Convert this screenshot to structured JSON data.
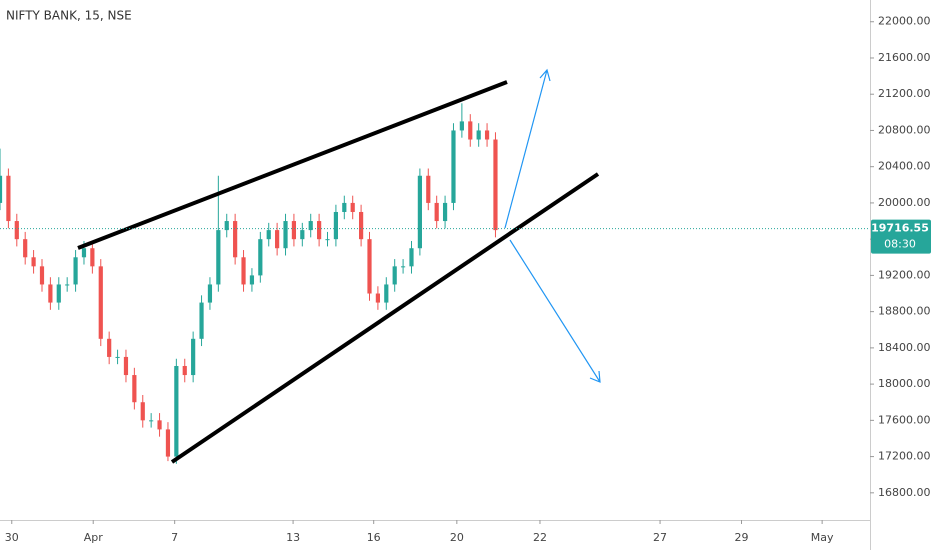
{
  "chart_data": {
    "type": "candlestick",
    "title": "NIFTY BANK, 15, NSE",
    "x": [
      0,
      1,
      2,
      3,
      4,
      5,
      6,
      7,
      8,
      9,
      10,
      11,
      12,
      13,
      14,
      15,
      16,
      17,
      18,
      19,
      20,
      21,
      22,
      23,
      24,
      25,
      26,
      27,
      28,
      29,
      30,
      31,
      32,
      33,
      34,
      35,
      36,
      37,
      38,
      39,
      40,
      41,
      42,
      43,
      44,
      45,
      46,
      47,
      48,
      49,
      50,
      51,
      52,
      53,
      54,
      55,
      56,
      57,
      58,
      59
    ],
    "open": [
      20000,
      20300,
      19800,
      19600,
      19400,
      19300,
      19100,
      18900,
      19100,
      19100,
      19400,
      19500,
      19300,
      18500,
      18300,
      18300,
      18100,
      17800,
      17600,
      17600,
      17500,
      17200,
      18200,
      18100,
      18500,
      18900,
      19100,
      19700,
      19800,
      19400,
      19100,
      19200,
      19600,
      19700,
      19500,
      19800,
      19600,
      19700,
      19800,
      19600,
      19600,
      19900,
      20000,
      19900,
      19600,
      19000,
      18900,
      19100,
      19300,
      19300,
      19500,
      20300,
      20000,
      19800,
      20000,
      20800,
      20900,
      20700,
      20800,
      20700
    ],
    "high": [
      20600,
      20380,
      19880,
      19680,
      19480,
      19380,
      19180,
      19180,
      19180,
      19480,
      19580,
      19580,
      19380,
      18580,
      18380,
      18380,
      18180,
      17880,
      17680,
      17680,
      17580,
      18280,
      18280,
      18580,
      18980,
      19180,
      20300,
      19880,
      19880,
      19480,
      19280,
      19680,
      19780,
      19780,
      19880,
      19880,
      19780,
      19880,
      19880,
      19680,
      19980,
      20080,
      20080,
      19980,
      19680,
      19080,
      19180,
      19380,
      19380,
      19580,
      20380,
      20380,
      20080,
      20080,
      20880,
      21100,
      20980,
      20880,
      20880,
      20780
    ],
    "low": [
      19920,
      19720,
      19520,
      19320,
      19220,
      19020,
      18820,
      18820,
      19020,
      19020,
      19320,
      19220,
      18420,
      18220,
      18220,
      18020,
      17720,
      17520,
      17520,
      17420,
      17150,
      17120,
      18020,
      18020,
      18420,
      18820,
      19020,
      19620,
      19320,
      19020,
      19020,
      19120,
      19520,
      19420,
      19420,
      19520,
      19520,
      19620,
      19520,
      19520,
      19520,
      19820,
      19820,
      19520,
      18920,
      18820,
      18820,
      19020,
      19220,
      19220,
      19420,
      19920,
      19720,
      19720,
      19920,
      20720,
      20620,
      20620,
      20620,
      19620
    ],
    "close": [
      20300,
      19800,
      19600,
      19400,
      19300,
      19100,
      18900,
      19100,
      19100,
      19400,
      19500,
      19300,
      18500,
      18300,
      18300,
      18100,
      17800,
      17600,
      17600,
      17500,
      17200,
      18200,
      18100,
      18500,
      18900,
      19100,
      19700,
      19800,
      19400,
      19100,
      19200,
      19600,
      19700,
      19500,
      19800,
      19600,
      19700,
      19800,
      19600,
      19600,
      19900,
      20000,
      19900,
      19600,
      19000,
      18900,
      19100,
      19300,
      19300,
      19500,
      20300,
      20000,
      19800,
      20000,
      20800,
      20900,
      20700,
      20800,
      20700,
      19700
    ],
    "up_color": "#26a69a",
    "down_color": "#ef5350",
    "xlim": [
      0,
      103.6
    ],
    "xticks": [
      {
        "value": 1.4,
        "label": "30"
      },
      {
        "value": 11.1,
        "label": "Apr"
      },
      {
        "value": 20.8,
        "label": "7"
      },
      {
        "value": 34.9,
        "label": "13"
      },
      {
        "value": 44.5,
        "label": "16"
      },
      {
        "value": 54.4,
        "label": "20"
      },
      {
        "value": 64.3,
        "label": "22"
      },
      {
        "value": 78.6,
        "label": "27"
      },
      {
        "value": 88.3,
        "label": "29"
      },
      {
        "value": 97.9,
        "label": "May"
      }
    ],
    "ylim": [
      16500,
      22240
    ],
    "yticks": [
      {
        "value": 16800,
        "label": "16800.00"
      },
      {
        "value": 17200,
        "label": "17200.00"
      },
      {
        "value": 17600,
        "label": "17600.00"
      },
      {
        "value": 18000,
        "label": "18000.00"
      },
      {
        "value": 18400,
        "label": "18400.00"
      },
      {
        "value": 18800,
        "label": "18800.00"
      },
      {
        "value": 19200,
        "label": "19200.00"
      },
      {
        "value": 19600,
        "label": "19600.00"
      },
      {
        "value": 20000,
        "label": "20000.00"
      },
      {
        "value": 20400,
        "label": "20400.00"
      },
      {
        "value": 20800,
        "label": "20800.00"
      },
      {
        "value": 21200,
        "label": "21200.00"
      },
      {
        "value": 21600,
        "label": "21600.00"
      },
      {
        "value": 22000,
        "label": "22000.00"
      }
    ],
    "last_price": 19716.55,
    "countdown": "08:30"
  }
}
